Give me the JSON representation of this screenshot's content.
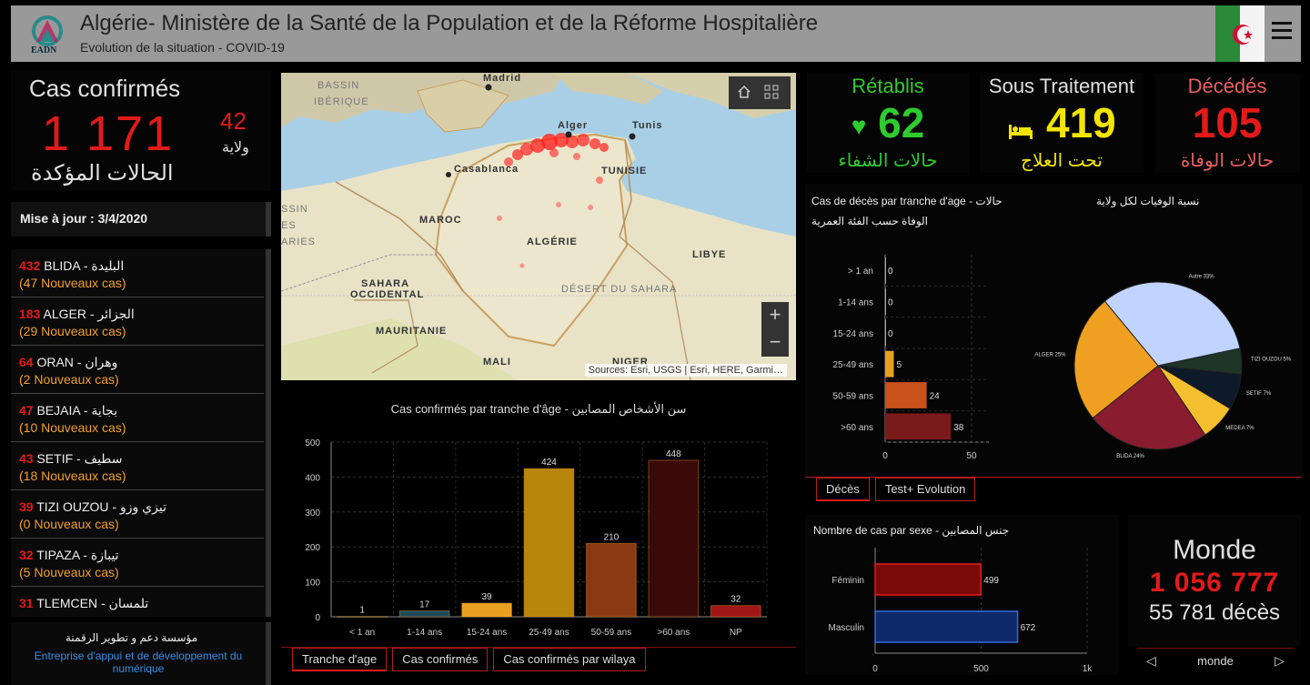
{
  "header": {
    "logo_text": "EADN",
    "title": "Algérie- Ministère de la Santé de la Population et de la Réforme Hospitalière",
    "subtitle": "Evolution de la situation - COVID-19"
  },
  "confirmed": {
    "title": "Cas confirmés",
    "value": "1 171",
    "label_ar": "الحالات المؤكدة",
    "wilayas_value": "42",
    "wilayas_label": "ولاية"
  },
  "update": {
    "label": "Mise à jour : 3/4/2020"
  },
  "wilayas": [
    {
      "count": "432",
      "name": "BLIDA -",
      "name_ar": "البليدة",
      "new": "(47 Nouveaux cas)"
    },
    {
      "count": "183",
      "name": "ALGER -",
      "name_ar": "الجزائر",
      "new": "(29 Nouveaux cas)"
    },
    {
      "count": "64",
      "name": "ORAN -",
      "name_ar": "وهران",
      "new": "(2 Nouveaux cas)"
    },
    {
      "count": "47",
      "name": "BEJAIA -",
      "name_ar": "بجاية",
      "new": "(10 Nouveaux cas)"
    },
    {
      "count": "43",
      "name": "SETIF -",
      "name_ar": "سطيف",
      "new": "(18 Nouveaux cas)"
    },
    {
      "count": "39",
      "name": "TIZI OUZOU -",
      "name_ar": "تيزي وزو",
      "new": "(0 Nouveaux cas)"
    },
    {
      "count": "32",
      "name": "TIPAZA -",
      "name_ar": "تيبازة",
      "new": "(5 Nouveaux cas)"
    },
    {
      "count": "31",
      "name": "TLEMCEN -",
      "name_ar": "تلمسان",
      "new": ""
    }
  ],
  "footer_left": {
    "ar": "مؤسسة دعم و تطوير الرقمنة",
    "fr": "Entreprise d'appui et de développement du numérique"
  },
  "map": {
    "labels": {
      "madrid": "Madrid",
      "bassin": "BASSIN",
      "iberique": "IBÉRIQUE",
      "alger": "Alger",
      "tunis": "Tunis",
      "casablanca": "Casablanca",
      "tunisie": "TUNISIE",
      "maroc": "MAROC",
      "algerie": "ALGÉRIE",
      "libye": "LIBYE",
      "sahara": "SAHARA",
      "occidental": "OCCIDENTAL",
      "desert": "DÉSERT DU SAHARA",
      "mauritanie": "MAURITANIE",
      "mali": "MALI",
      "niger": "NIGER",
      "edge1": "SSIN",
      "edge2": "ES",
      "edge3": "ARIES"
    },
    "attribution": "Sources: Esri, USGS | Esri, HERE, Garmi…",
    "zoom_in": "+",
    "zoom_out": "−"
  },
  "kpis": {
    "recovered": {
      "title": "Rétablis",
      "value": "62",
      "label_ar": "حالات الشفاء",
      "color": "#2ecc2e"
    },
    "treatment": {
      "title": "Sous Traitement",
      "value": "419",
      "label_ar": "تحت العلاج",
      "color": "#f2e600"
    },
    "deaths": {
      "title": "Décédés",
      "value": "105",
      "label_ar": "حالات الوفاة",
      "color": "#e31a1a"
    }
  },
  "deaths_panel": {
    "title1": "Cas de décès par tranche d'age - حالات",
    "title2": "الوفاة حسب الفئة العمرية",
    "pie_title": "نسبة الوفيات لكل ولاية"
  },
  "deaths_tabs": [
    "Décès",
    "Test+ Evolution"
  ],
  "age_tabs": [
    "Tranche d'age",
    "Cas confirmés",
    "Cas confirmés par wilaya"
  ],
  "sexe_panel": {
    "title": "Nombre de cas par sexe - جنس المصابين"
  },
  "world": {
    "title": "Monde",
    "value": "1 056 777",
    "deaths": "55 781 décès",
    "nav_label": "monde",
    "prev": "◁",
    "next": "▷"
  },
  "chart_data": [
    {
      "type": "bar",
      "title": "Cas confirmés par tranche d'âge - سن الأشخاص المصابين",
      "categories": [
        "< 1 an",
        "1-14 ans",
        "15-24 ans",
        "25-49 ans",
        "50-59 ans",
        ">60 ans",
        "NP"
      ],
      "values": [
        1,
        17,
        39,
        424,
        210,
        448,
        32
      ],
      "colors": [
        "#2a5a6a",
        "#1e4a5a",
        "#e8a020",
        "#b8860b",
        "#8a3a12",
        "#3a0a0a",
        "#a01515"
      ],
      "yticks": [
        0,
        100,
        200,
        300,
        400,
        500
      ],
      "ylim": [
        0,
        500
      ]
    },
    {
      "type": "bar",
      "orientation": "horizontal",
      "title": "Cas de décès par tranche d'age - حالات الوفاة حسب الفئة العمرية",
      "categories": [
        "> 1 an",
        "1-14 ans",
        "15-24 ans",
        "25-49 ans",
        "50-59 ans",
        ">60 ans"
      ],
      "values": [
        0,
        0,
        0,
        5,
        24,
        38
      ],
      "colors": [
        "#e8a020",
        "#e8a020",
        "#e8a020",
        "#e8a020",
        "#c8521a",
        "#7a1a1a"
      ],
      "xticks": [
        0,
        50
      ],
      "xlim": [
        0,
        60
      ]
    },
    {
      "type": "pie",
      "title": "نسبة الوفيات لكل ولاية",
      "labels": [
        "Autre 33%",
        "TIZI OUZOU 5%",
        "SETIF 7%",
        "MEDEA 7%",
        "BLIDA 24%",
        "ALGER 25%"
      ],
      "values": [
        33,
        5,
        7,
        7,
        24,
        25
      ],
      "colors": [
        "#c0d4ff",
        "#1e3528",
        "#0e1a2a",
        "#f5c030",
        "#8a1c30",
        "#f0a020"
      ]
    },
    {
      "type": "bar",
      "orientation": "horizontal",
      "title": "Nombre de cas par sexe - جنس المصابين",
      "categories": [
        "Féminin",
        "Masculin"
      ],
      "values": [
        499,
        672
      ],
      "colors": [
        "#7a0a0a",
        "#0e2a6a"
      ],
      "borders": [
        "#e31a1a",
        "#3a6ad6"
      ],
      "xticks": [
        "0",
        "500",
        "1k"
      ],
      "xlim": [
        0,
        1000
      ]
    }
  ]
}
